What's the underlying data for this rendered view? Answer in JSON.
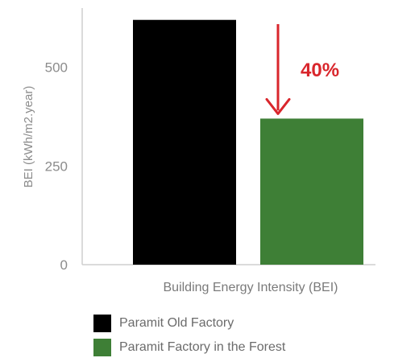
{
  "chart_data": {
    "type": "bar",
    "categories": [
      "Building Energy Intensity (BEI)"
    ],
    "series": [
      {
        "name": "Paramit Old Factory",
        "values": [
          620
        ],
        "color": "#000000"
      },
      {
        "name": "Paramit Factory in the Forest",
        "values": [
          370
        ],
        "color": "#3e7f36"
      }
    ],
    "xlabel": "Building Energy Intensity (BEI)",
    "ylabel": "BEI (kWh/m2.year)",
    "ylim": [
      0,
      650
    ],
    "yticks": [
      0,
      250,
      500
    ],
    "grid": false,
    "legend": "bottom-left",
    "annotation": {
      "text": "40%",
      "color": "#d9262c"
    }
  }
}
